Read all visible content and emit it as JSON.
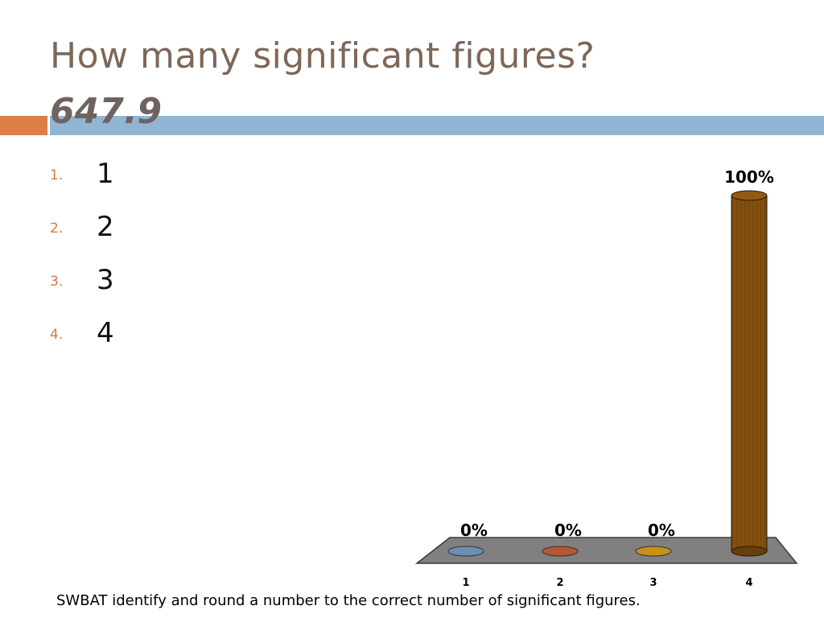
{
  "slide": {
    "title": "How many significant figures?",
    "number": "647.9",
    "footer": "SWBAT identify and round a number to the correct number of significant figures."
  },
  "answers": [
    {
      "num": "1.",
      "text": "1"
    },
    {
      "num": "2.",
      "text": "2"
    },
    {
      "num": "3.",
      "text": "3"
    },
    {
      "num": "4.",
      "text": "4"
    }
  ],
  "colors": {
    "title": "#7d6758",
    "accent_orange": "#dc7e46",
    "accent_blue": "#92b5d4",
    "list_number": "#d7793f",
    "floor": "#808080"
  },
  "chart_data": {
    "type": "bar",
    "categories": [
      "1",
      "2",
      "3",
      "4"
    ],
    "values": [
      0,
      0,
      0,
      100
    ],
    "labels": [
      "0%",
      "0%",
      "0%",
      "100%"
    ],
    "ylim": [
      0,
      100
    ],
    "grid": false,
    "colors": [
      "#6b8fb3",
      "#b5582f",
      "#c7901a",
      "#7a4a0e"
    ]
  }
}
